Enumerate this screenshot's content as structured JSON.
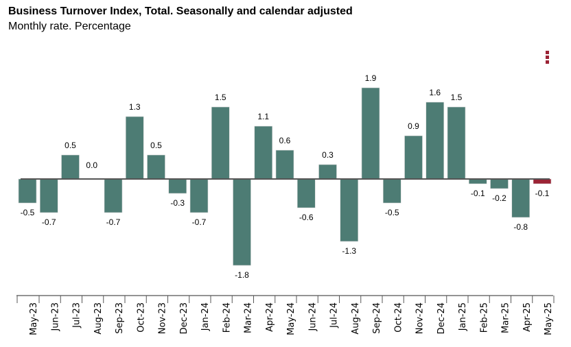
{
  "chart_data": {
    "type": "bar",
    "title": "Business Turnover Index, Total. Seasonally and calendar adjusted",
    "subtitle": "Monthly rate. Percentage",
    "xlabel": "",
    "ylabel": "",
    "ylim": [
      -1.8,
      1.9
    ],
    "grid": false,
    "legend": "none",
    "categories": [
      "May-23",
      "Jun-23",
      "Jul-23",
      "Aug-23",
      "Sep-23",
      "Oct-23",
      "Nov-23",
      "Dec-23",
      "Jan-24",
      "Feb-24",
      "Mar-24",
      "Apr-24",
      "May-24",
      "Jun-24",
      "Jul-24",
      "Aug-24",
      "Sep-24",
      "Oct-24",
      "Nov-24",
      "Dec-24",
      "Jan-25",
      "Feb-25",
      "Mar-25",
      "Apr-25",
      "May-25"
    ],
    "values": [
      -0.5,
      -0.7,
      0.5,
      0.0,
      -0.7,
      1.3,
      0.5,
      -0.3,
      -0.7,
      1.5,
      -1.8,
      1.1,
      0.6,
      -0.6,
      0.3,
      -1.3,
      1.9,
      -0.5,
      0.9,
      1.6,
      1.5,
      -0.1,
      -0.2,
      -0.8,
      -0.1
    ],
    "data_labels": [
      "-0.5",
      "-0.7",
      "0.5",
      "0.0",
      "-0.7",
      "1.3",
      "0.5",
      "-0.3",
      "-0.7",
      "1.5",
      "-1.8",
      "1.1",
      "0.6",
      "-0.6",
      "0.3",
      "-1.3",
      "1.9",
      "-0.5",
      "0.9",
      "1.6",
      "1.5",
      "-0.1",
      "-0.2",
      "-0.8",
      "-0.1"
    ],
    "colors": {
      "bar": "#4d7c74",
      "highlight_bar": "#9b2335",
      "zero_line": "#555555"
    },
    "highlight_index": 24
  },
  "menu": {
    "icon": "kebab-menu-icon"
  }
}
